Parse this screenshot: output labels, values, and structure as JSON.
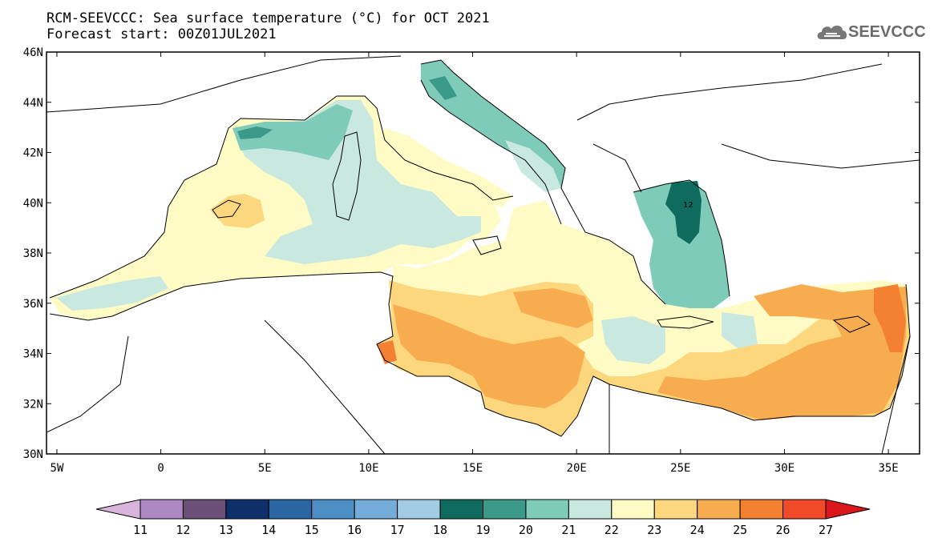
{
  "header": {
    "title_line1": "RCM-SEEVCCC: Sea surface temperature (°C) for OCT 2021",
    "title_line2": "Forecast start: 00Z01JUL2021"
  },
  "logo": {
    "text": "SEEVCCC",
    "icon": "cloud-icon"
  },
  "map": {
    "region": "Mediterranean Sea",
    "lon_range": [
      -5.5,
      36.5
    ],
    "lat_range": [
      30,
      46
    ],
    "x_ticks": [
      "5W",
      "0",
      "5E",
      "10E",
      "15E",
      "20E",
      "25E",
      "30E",
      "35E"
    ],
    "x_tick_values": [
      -5,
      0,
      5,
      10,
      15,
      20,
      25,
      30,
      35
    ],
    "y_ticks": [
      "46N",
      "44N",
      "42N",
      "40N",
      "38N",
      "36N",
      "34N",
      "32N",
      "30N"
    ],
    "y_tick_values": [
      46,
      44,
      42,
      40,
      38,
      36,
      34,
      32,
      30
    ],
    "annotation": "12"
  },
  "colorbar": {
    "labels": [
      "11",
      "12",
      "13",
      "14",
      "15",
      "16",
      "17",
      "18",
      "19",
      "20",
      "21",
      "22",
      "23",
      "24",
      "25",
      "26",
      "27"
    ],
    "colors": [
      "#d8b4dc",
      "#ae88c0",
      "#6b4f78",
      "#0f2f6b",
      "#2a66a1",
      "#4d8fc4",
      "#73acd9",
      "#a3cbe6",
      "#0e6b5d",
      "#3a9988",
      "#7ecbb9",
      "#c9e8e0",
      "#fffbc4",
      "#fcd77e",
      "#f7ac4f",
      "#f48132",
      "#f04a29",
      "#d8161b"
    ]
  }
}
